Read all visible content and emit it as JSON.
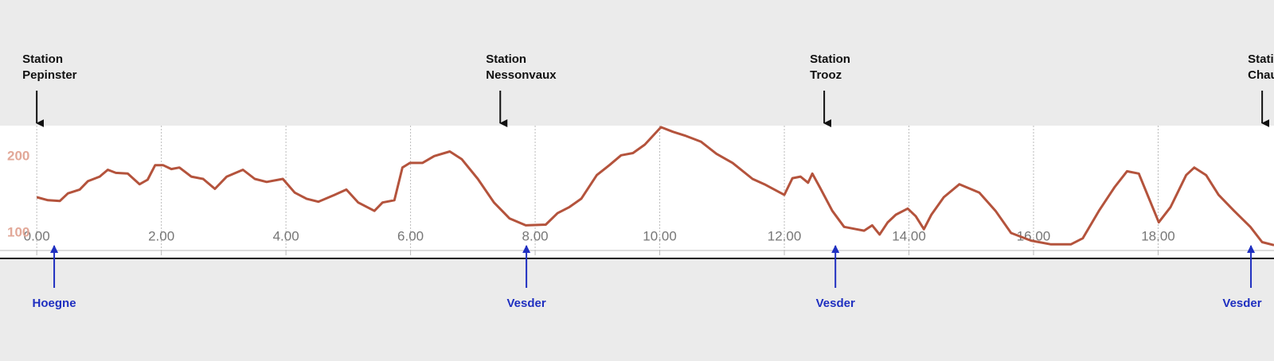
{
  "chart_data": {
    "type": "line",
    "x": [
      0,
      0.18,
      0.37,
      0.5,
      0.69,
      0.82,
      1.01,
      1.14,
      1.27,
      1.46,
      1.65,
      1.78,
      1.9,
      2.03,
      2.16,
      2.29,
      2.48,
      2.67,
      2.86,
      3.05,
      3.31,
      3.5,
      3.69,
      3.95,
      4.14,
      4.33,
      4.52,
      4.78,
      4.97,
      5.16,
      5.42,
      5.55,
      5.74,
      5.87,
      5.99,
      6.19,
      6.38,
      6.63,
      6.82,
      7.08,
      7.34,
      7.59,
      7.85,
      8.17,
      8.36,
      8.55,
      8.74,
      8.99,
      9.19,
      9.38,
      9.57,
      9.76,
      10.02,
      10.21,
      10.4,
      10.66,
      10.91,
      11.17,
      11.49,
      11.68,
      12,
      12.13,
      12.26,
      12.38,
      12.45,
      12.57,
      12.77,
      12.96,
      13.15,
      13.28,
      13.41,
      13.53,
      13.66,
      13.79,
      13.98,
      14.11,
      14.24,
      14.36,
      14.56,
      14.81,
      15.13,
      15.39,
      15.64,
      15.96,
      16.28,
      16.6,
      16.79,
      17.05,
      17.3,
      17.5,
      17.69,
      17.88,
      18.01,
      18.2,
      18.45,
      18.58,
      18.77,
      18.97,
      19.22,
      19.48,
      19.67,
      19.86
    ],
    "values": [
      147,
      143,
      142,
      152,
      157,
      168,
      174,
      183,
      179,
      178,
      164,
      170,
      189,
      189,
      184,
      186,
      174,
      171,
      158,
      174,
      183,
      171,
      167,
      171,
      153,
      145,
      141,
      150,
      157,
      140,
      129,
      140,
      143,
      186,
      192,
      192,
      201,
      207,
      197,
      171,
      140,
      119,
      110,
      111,
      126,
      134,
      145,
      176,
      189,
      202,
      205,
      216,
      239,
      233,
      228,
      220,
      204,
      192,
      171,
      164,
      150,
      172,
      174,
      166,
      178,
      160,
      129,
      108,
      105,
      103,
      110,
      98,
      114,
      124,
      132,
      122,
      105,
      124,
      147,
      164,
      153,
      129,
      100,
      90,
      85,
      85,
      93,
      129,
      160,
      181,
      178,
      140,
      114,
      134,
      176,
      186,
      176,
      150,
      129,
      108,
      88,
      84
    ],
    "color": "#b4533c",
    "xlim": [
      -0.59,
      19.86
    ],
    "ylim": [
      77,
      241
    ],
    "xticks": [
      {
        "value": 0,
        "label": "0.00"
      },
      {
        "value": 2,
        "label": "2.00"
      },
      {
        "value": 4,
        "label": "4.00"
      },
      {
        "value": 6,
        "label": "6.00"
      },
      {
        "value": 8,
        "label": "8.00"
      },
      {
        "value": 10,
        "label": "10.00"
      },
      {
        "value": 12,
        "label": "12.00"
      },
      {
        "value": 14,
        "label": "14.00"
      },
      {
        "value": 16,
        "label": "16.00"
      },
      {
        "value": 18,
        "label": "18.00"
      }
    ],
    "yticks": [
      100,
      200
    ],
    "grid": true,
    "stations": [
      {
        "lines": [
          "Station",
          "Pepinster"
        ],
        "x": 0
      },
      {
        "lines": [
          "Station",
          "Nessonvaux"
        ],
        "x": 7.44
      },
      {
        "lines": [
          "Station",
          "Trooz"
        ],
        "x": 12.64
      },
      {
        "lines": [
          "Station",
          "Chaudfontaine"
        ],
        "x": 19.67
      }
    ],
    "rivers": [
      {
        "label": "Hoegne",
        "x": 0.28
      },
      {
        "label": "Vesder",
        "x": 7.86
      },
      {
        "label": "Vesder",
        "x": 12.82
      },
      {
        "label": "Vesder",
        "x": 19.49
      }
    ]
  }
}
